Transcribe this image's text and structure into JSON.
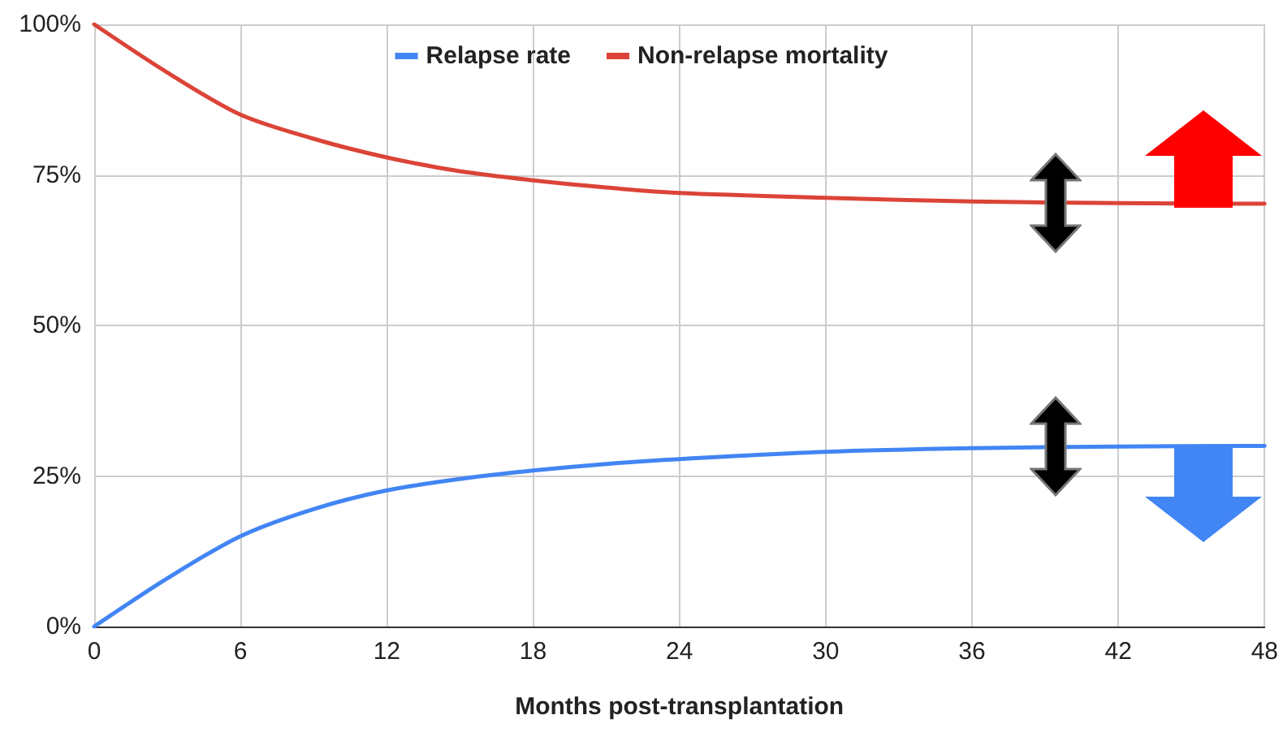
{
  "chart_data": {
    "type": "line",
    "xlabel": "Months post-transplantation",
    "x": [
      0,
      3,
      6,
      9,
      12,
      15,
      18,
      21,
      24,
      30,
      36,
      42,
      48
    ],
    "series": [
      {
        "name": "Relapse rate",
        "color": "#4285f4",
        "values": [
          0,
          8,
          15,
          19.5,
          22.6,
          24.5,
          25.9,
          27,
          27.8,
          29,
          29.6,
          29.9,
          30
        ]
      },
      {
        "name": "Non-relapse mortality",
        "color": "#db4437",
        "values": [
          100,
          92,
          85,
          81,
          77.9,
          75.6,
          74.1,
          72.9,
          72,
          71.2,
          70.6,
          70.3,
          70.2
        ]
      }
    ],
    "xlim": [
      0,
      48
    ],
    "xticks": [
      0,
      6,
      12,
      18,
      24,
      30,
      36,
      42,
      48
    ],
    "ylim": [
      0,
      100
    ],
    "yticks": [
      {
        "value": 0,
        "label": "0%"
      },
      {
        "value": 25,
        "label": "25%"
      },
      {
        "value": 50,
        "label": "50%"
      },
      {
        "value": 75,
        "label": "75%"
      },
      {
        "value": 100,
        "label": "100%"
      }
    ],
    "grid": true,
    "legend": "top",
    "marker": "none",
    "line_style": "solid"
  }
}
